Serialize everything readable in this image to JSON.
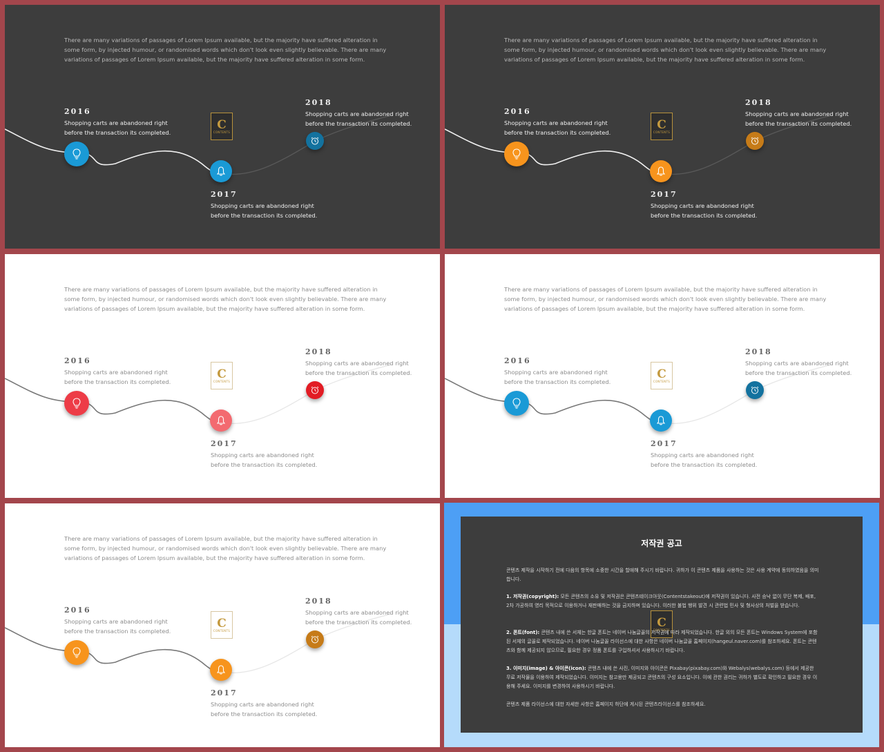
{
  "intro_text": "There are many variations of passages of Lorem Ipsum available, but the majority have suffered alteration in some form, by injected humour, or randomised words which don't look even slightly believable. There are many variations of passages of Lorem Ipsum available, but the majority have suffered alteration in some form.",
  "milestones": {
    "y2016": "2016",
    "y2017": "2017",
    "y2018": "2018",
    "desc": "Shopping carts are abandoned right before the transaction its completed."
  },
  "logo": {
    "letter": "C",
    "text": "CONTENTS"
  },
  "icons": [
    "lightbulb-icon",
    "bell-icon",
    "alarm-clock-icon"
  ],
  "themes": [
    {
      "bg": "dark",
      "c1": "#1a9ad6",
      "c2": "#1a9ad6",
      "c3": "#13729f"
    },
    {
      "bg": "dark",
      "c1": "#f7941d",
      "c2": "#f7941d",
      "c3": "#c67b18"
    },
    {
      "bg": "light",
      "c1": "#ed3c47",
      "c2": "#f36a70",
      "c3": "#e21c24"
    },
    {
      "bg": "light",
      "c1": "#1a9ad6",
      "c2": "#1a9ad6",
      "c3": "#13729f"
    },
    {
      "bg": "light",
      "c1": "#f7941d",
      "c2": "#f7941d",
      "c3": "#c67b18"
    }
  ],
  "notice": {
    "title": "저작권 공고",
    "intro": "콘텐츠 제작을 시작하기 전에 다음의 항목에 소중한 시간을 할애해 주시기 바랍니다. 귀하가 이 콘텐츠 제품을 사용하는 것은 사용 계약에 동의하였음을 의미합니다.",
    "p1_head": "1. 저작권(copyright):",
    "p1_body": "모든 콘텐츠의 소유 및 저작권은 콘텐츠테이크아웃(Contentstakeout)에 저작권이 있습니다. 사전 승낙 없이 무단 복제, 배포, 2차 가공하여 영리 목적으로 이용하거나 재판매하는 것을 금지하며 있습니다. 이러한 불법 행위 발견 시 관련법 민사 및 형사상의 처벌을 받습니다.",
    "p2_head": "2. 폰트(font):",
    "p2_body": "콘텐츠 내에 쓴 서체는 한글 폰트는 네이버 나눔글꼴의 저작권에 따라 제작되었습니다. 한글 외의 모든 폰트는 Windows System에 포함된 서체의 글꼴로 제작되었습니다. 네이버 나눔글꼴 라이선스에 대한 사항은 네이버 나눔글꼴 홈페이지(hangeul.naver.com)를 참조하세요. 폰트는 콘텐츠와 함께 제공되지 않으므로, 필요한 경우 정품 폰트를 구입하셔서 사용하시기 바랍니다.",
    "p3_head": "3. 이미지(image) & 아이콘(icon):",
    "p3_body": "콘텐츠 내에 쓴 사진, 이미지와 아이콘은 Pixabay(pixabay.com)와 Webalys(webalys.com) 등에서 제공한 무료 저작물을 이용하여 제작되었습니다. 이미지는 참고용만 제공되고 콘텐츠의 구성 요소입니다. 이에 관한 권리는 귀하가 별도로 확인하고 필요한 경우 이용해 주세요. 이미지를 변경하여 사용하시기 바랍니다.",
    "footer": "콘텐츠 제품 라이선스에 대한 자세한 사항은 홈페이지 하단에 게시된 콘텐츠라이선스를 참조하세요."
  }
}
